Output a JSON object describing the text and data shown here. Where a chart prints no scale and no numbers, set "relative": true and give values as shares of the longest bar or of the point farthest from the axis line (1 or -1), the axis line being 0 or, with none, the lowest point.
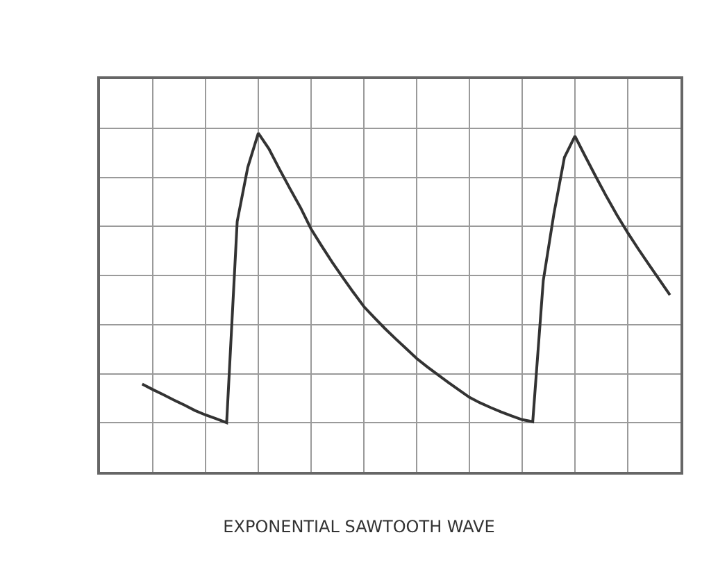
{
  "chart_data": {
    "type": "line",
    "title": "EXPONENTIAL SAWTOOTH WAVE",
    "relative": true,
    "grid": true,
    "marker": "none",
    "line_style": "solid",
    "categories": [
      null,
      null,
      null,
      null,
      null,
      null,
      null,
      null,
      null,
      null,
      null,
      null,
      null,
      null,
      null,
      null,
      null,
      null,
      null,
      null,
      null,
      null,
      null,
      null,
      null,
      null,
      null,
      null,
      null,
      null,
      null,
      null,
      null,
      null,
      null,
      null,
      null,
      null,
      null,
      null,
      null,
      null,
      null,
      null,
      null,
      null,
      null,
      null,
      null,
      null,
      null
    ],
    "series": [
      {
        "color": "#333333",
        "values": [
          0.259,
          0.243,
          0.228,
          0.212,
          0.197,
          0.181,
          0.168,
          0.157,
          0.145,
          0.739,
          0.899,
          1,
          0.954,
          0.894,
          0.836,
          0.78,
          0.717,
          0.667,
          0.619,
          0.574,
          0.53,
          0.488,
          0.455,
          0.423,
          0.393,
          0.364,
          0.335,
          0.31,
          0.287,
          0.264,
          0.242,
          0.22,
          0.204,
          0.19,
          0.177,
          0.165,
          0.154,
          0.148,
          0.565,
          0.761,
          0.928,
          0.991,
          0.93,
          0.87,
          0.812,
          0.757,
          0.706,
          0.658,
          0.612,
          0.567,
          0.522
        ]
      }
    ]
  }
}
